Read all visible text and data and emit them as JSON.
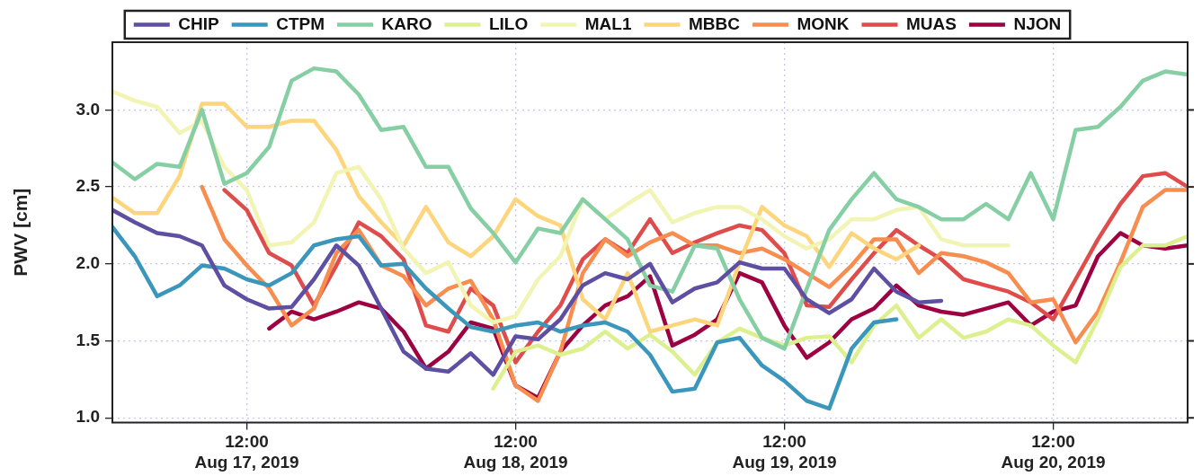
{
  "chart_data": {
    "type": "line",
    "ylabel": "PWV [cm]",
    "legend": "top",
    "grid": true,
    "xlim": [
      "2019-08-17T00:00",
      "2019-08-21T00:00"
    ],
    "xticks": [
      {
        "value": "2019-08-17T12:00",
        "label": "12:00\nAug 17, 2019"
      },
      {
        "value": "2019-08-18T12:00",
        "label": "12:00\nAug 18, 2019"
      },
      {
        "value": "2019-08-19T12:00",
        "label": "12:00\nAug 19, 2019"
      },
      {
        "value": "2019-08-20T12:00",
        "label": "12:00\nAug 20, 2019"
      }
    ],
    "ylim": [
      0.97,
      3.44
    ],
    "yticks": [
      {
        "value": 1,
        "label": "1.0"
      },
      1.5,
      {
        "value": 2,
        "label": "2.0"
      },
      2.5,
      {
        "value": 3,
        "label": "3.0"
      }
    ],
    "x": [
      "2019-08-17T00:00",
      "2019-08-17T02:00",
      "2019-08-17T04:00",
      "2019-08-17T06:00",
      "2019-08-17T08:00",
      "2019-08-17T10:00",
      "2019-08-17T12:00",
      "2019-08-17T14:00",
      "2019-08-17T16:00",
      "2019-08-17T18:00",
      "2019-08-17T20:00",
      "2019-08-17T22:00",
      "2019-08-18T00:00",
      "2019-08-18T02:00",
      "2019-08-18T04:00",
      "2019-08-18T06:00",
      "2019-08-18T08:00",
      "2019-08-18T10:00",
      "2019-08-18T12:00",
      "2019-08-18T14:00",
      "2019-08-18T16:00",
      "2019-08-18T18:00",
      "2019-08-18T20:00",
      "2019-08-18T22:00",
      "2019-08-19T00:00",
      "2019-08-19T02:00",
      "2019-08-19T04:00",
      "2019-08-19T06:00",
      "2019-08-19T08:00",
      "2019-08-19T10:00",
      "2019-08-19T12:00",
      "2019-08-19T14:00",
      "2019-08-19T16:00",
      "2019-08-19T18:00",
      "2019-08-19T20:00",
      "2019-08-19T22:00",
      "2019-08-20T00:00",
      "2019-08-20T02:00",
      "2019-08-20T04:00",
      "2019-08-20T06:00",
      "2019-08-20T08:00",
      "2019-08-20T10:00",
      "2019-08-20T12:00",
      "2019-08-20T14:00",
      "2019-08-20T16:00",
      "2019-08-20T18:00",
      "2019-08-20T20:00",
      "2019-08-20T22:00",
      "2019-08-21T00:00"
    ],
    "series": [
      {
        "name": "CHIP",
        "color": "#5e4fa2",
        "values": [
          2.35,
          2.27,
          2.2,
          2.18,
          2.12,
          1.86,
          1.77,
          1.71,
          1.72,
          1.9,
          2.12,
          1.99,
          1.71,
          1.43,
          1.32,
          1.3,
          1.42,
          1.28,
          1.53,
          1.51,
          1.64,
          1.86,
          1.94,
          1.9,
          2.0,
          1.75,
          1.84,
          1.88,
          2.01,
          1.97,
          1.97,
          1.77,
          1.68,
          1.77,
          1.97,
          1.82,
          1.75,
          1.76,
          null,
          null,
          null,
          null,
          null,
          null,
          null,
          null,
          null,
          null,
          null
        ]
      },
      {
        "name": "CTPM",
        "color": "#3a97bb",
        "values": [
          2.24,
          2.05,
          1.79,
          1.86,
          1.99,
          1.97,
          1.9,
          1.86,
          1.94,
          2.12,
          2.16,
          2.18,
          1.99,
          2.0,
          1.84,
          1.71,
          1.59,
          1.56,
          1.6,
          1.62,
          1.56,
          1.6,
          1.62,
          1.56,
          1.41,
          1.17,
          1.19,
          1.49,
          1.52,
          1.34,
          1.24,
          1.11,
          1.06,
          1.45,
          1.62,
          1.64,
          null,
          null,
          null,
          null,
          null,
          null,
          null,
          null,
          null,
          null,
          null,
          null,
          null
        ]
      },
      {
        "name": "KARO",
        "color": "#86cfa4",
        "values": [
          2.66,
          2.55,
          2.65,
          2.63,
          3.0,
          2.52,
          2.59,
          2.76,
          3.19,
          3.27,
          3.25,
          3.1,
          2.87,
          2.89,
          2.63,
          2.63,
          2.36,
          2.2,
          2.01,
          2.23,
          2.2,
          2.42,
          2.29,
          2.16,
          1.86,
          1.82,
          2.12,
          2.1,
          1.77,
          1.52,
          1.45,
          1.84,
          2.22,
          2.42,
          2.59,
          2.42,
          2.37,
          2.29,
          2.29,
          2.39,
          2.29,
          2.59,
          2.29,
          2.87,
          2.89,
          3.02,
          3.19,
          3.25,
          3.23
        ]
      },
      {
        "name": "LILO",
        "color": "#dcf08f",
        "values": [
          null,
          null,
          null,
          null,
          null,
          null,
          null,
          null,
          null,
          null,
          null,
          null,
          null,
          null,
          null,
          null,
          null,
          1.19,
          1.43,
          1.47,
          1.41,
          1.45,
          1.56,
          1.45,
          1.54,
          1.43,
          1.28,
          1.49,
          1.58,
          1.52,
          1.47,
          1.52,
          1.53,
          1.36,
          1.6,
          1.73,
          1.52,
          1.64,
          1.52,
          1.56,
          1.64,
          1.6,
          1.47,
          1.36,
          1.64,
          1.98,
          2.12,
          2.12,
          2.18
        ]
      },
      {
        "name": "MAL1",
        "color": "#f1f4b3",
        "values": [
          3.12,
          3.06,
          3.02,
          2.85,
          2.93,
          2.63,
          2.48,
          2.12,
          2.14,
          2.27,
          2.59,
          2.63,
          2.42,
          2.1,
          1.94,
          2.01,
          1.73,
          1.62,
          1.66,
          1.9,
          2.05,
          2.42,
          2.29,
          2.39,
          2.48,
          2.27,
          2.33,
          2.37,
          2.37,
          2.29,
          2.18,
          2.1,
          2.16,
          2.29,
          2.29,
          2.35,
          2.37,
          2.16,
          2.12,
          2.12,
          2.12,
          null,
          null,
          null,
          null,
          null,
          null,
          null,
          null
        ]
      },
      {
        "name": "MBBC",
        "color": "#fdd57c",
        "values": [
          2.43,
          2.33,
          2.33,
          2.57,
          3.04,
          3.04,
          2.89,
          2.89,
          2.93,
          2.93,
          2.74,
          2.44,
          2.27,
          2.12,
          2.37,
          2.14,
          2.05,
          2.18,
          2.42,
          2.31,
          2.25,
          1.77,
          1.64,
          1.94,
          1.56,
          1.6,
          1.64,
          1.6,
          2.01,
          2.37,
          2.25,
          2.18,
          1.98,
          2.2,
          2.1,
          2.03,
          2.12,
          null,
          null,
          null,
          null,
          null,
          null,
          null,
          null,
          null,
          null,
          null,
          null
        ]
      },
      {
        "name": "MONK",
        "color": "#f88d50",
        "values": [
          null,
          null,
          null,
          null,
          2.5,
          2.16,
          1.99,
          1.84,
          1.6,
          1.71,
          2.07,
          2.22,
          1.99,
          1.92,
          1.73,
          1.84,
          1.89,
          1.64,
          1.21,
          1.11,
          1.43,
          1.94,
          2.16,
          2.05,
          2.14,
          2.2,
          2.12,
          2.12,
          2.07,
          2.1,
          2.03,
          1.94,
          1.85,
          1.99,
          2.16,
          2.16,
          1.94,
          2.07,
          2.05,
          2.01,
          1.94,
          1.75,
          1.77,
          1.49,
          1.69,
          2.01,
          2.37,
          2.48,
          2.48
        ]
      },
      {
        "name": "MUAS",
        "color": "#de4c4b",
        "values": [
          null,
          null,
          null,
          null,
          null,
          2.48,
          2.35,
          2.07,
          1.99,
          1.73,
          1.99,
          2.27,
          2.18,
          2.03,
          1.6,
          1.56,
          1.84,
          1.73,
          1.36,
          1.56,
          1.73,
          2.03,
          2.16,
          2.07,
          2.29,
          2.07,
          2.14,
          2.2,
          2.25,
          2.22,
          2.07,
          1.73,
          1.72,
          1.9,
          2.07,
          2.22,
          2.12,
          2.03,
          1.9,
          1.86,
          1.82,
          1.75,
          1.64,
          1.9,
          2.16,
          2.39,
          2.57,
          2.59,
          2.5
        ]
      },
      {
        "name": "NJON",
        "color": "#9e0142",
        "values": [
          null,
          null,
          null,
          null,
          null,
          null,
          null,
          1.58,
          1.69,
          1.64,
          1.69,
          1.75,
          1.71,
          1.56,
          1.32,
          1.43,
          1.62,
          1.58,
          1.21,
          1.13,
          1.43,
          1.6,
          1.73,
          1.79,
          1.92,
          1.47,
          1.54,
          1.64,
          1.94,
          1.88,
          1.6,
          1.39,
          1.49,
          1.64,
          1.71,
          1.86,
          1.73,
          1.69,
          1.67,
          1.71,
          1.75,
          1.6,
          1.69,
          1.73,
          2.05,
          2.2,
          2.12,
          2.1,
          2.12
        ]
      }
    ]
  }
}
